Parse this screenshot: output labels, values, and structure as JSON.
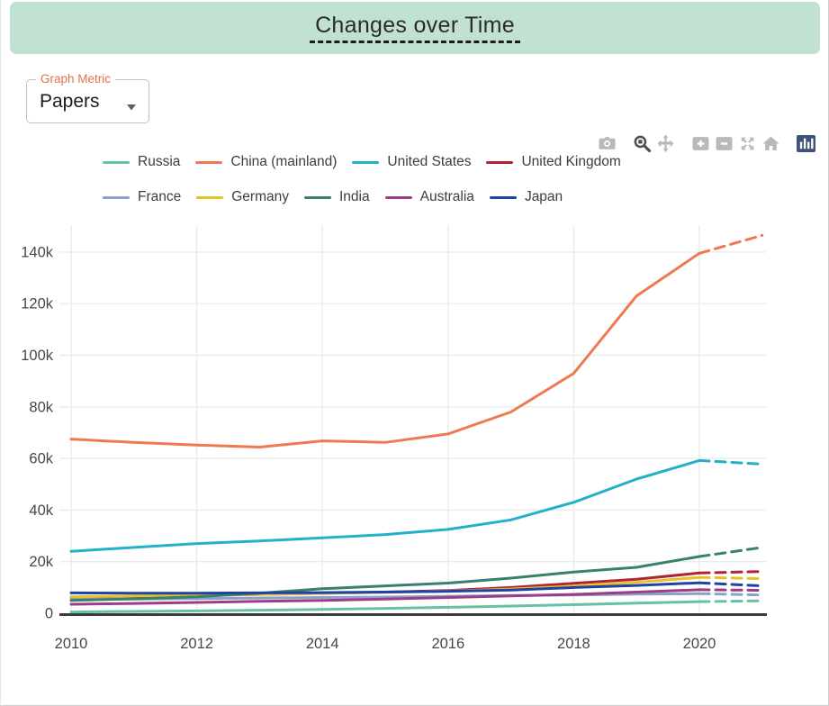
{
  "header": {
    "title": "Changes over Time"
  },
  "controls": {
    "graph_metric": {
      "label": "Graph Metric",
      "value": "Papers"
    }
  },
  "toolbar": {
    "icons": [
      "camera-download",
      "zoom",
      "pan",
      "zoom-in",
      "zoom-out",
      "autoscale",
      "reset-axes-home",
      "plotly-logo"
    ]
  },
  "colors": {
    "header_bg": "#c1e2d2",
    "metric_label_accent": "#e0714f",
    "axis_text": "#474747",
    "gridline": "#ebebeb",
    "zeroline": "#3b3b3b",
    "modebar_icon": "#b9b9b9",
    "modebar_icon_active": "#4d4d4d",
    "plotly_logo_bg": "#3e527a"
  },
  "chart_data": {
    "type": "line",
    "title": "",
    "xlabel": "",
    "ylabel": "",
    "x": [
      2010,
      2011,
      2012,
      2013,
      2014,
      2015,
      2016,
      2017,
      2018,
      2019,
      2020,
      2021
    ],
    "xticks": [
      {
        "v": 2010,
        "label": "2010"
      },
      {
        "v": 2012,
        "label": "2012"
      },
      {
        "v": 2014,
        "label": "2014"
      },
      {
        "v": 2016,
        "label": "2016"
      },
      {
        "v": 2018,
        "label": "2018"
      },
      {
        "v": 2020,
        "label": "2020"
      }
    ],
    "yticks": [
      {
        "v": 0,
        "label": "0"
      },
      {
        "v": 20000,
        "label": "20k"
      },
      {
        "v": 40000,
        "label": "40k"
      },
      {
        "v": 60000,
        "label": "60k"
      },
      {
        "v": 80000,
        "label": "80k"
      },
      {
        "v": 100000,
        "label": "100k"
      },
      {
        "v": 120000,
        "label": "120k"
      },
      {
        "v": 140000,
        "label": "140k"
      }
    ],
    "xlim": [
      2009.8,
      2021.1
    ],
    "ylim": [
      0,
      150000
    ],
    "grid": true,
    "legend_position": "top",
    "legend_rows": [
      4,
      5
    ],
    "dashed_final_segment": true,
    "series": [
      {
        "name": "Russia",
        "color": "#66c2a5",
        "values": [
          500,
          700,
          900,
          1200,
          1500,
          1900,
          2300,
          2800,
          3300,
          3900,
          4500,
          4800
        ]
      },
      {
        "name": "China (mainland)",
        "color": "#ee7a4f",
        "values": [
          67500,
          66200,
          65200,
          64400,
          66800,
          66200,
          69500,
          78000,
          93000,
          123000,
          139500,
          146500
        ]
      },
      {
        "name": "United States",
        "color": "#22b1c7",
        "values": [
          24000,
          25500,
          27000,
          28000,
          29200,
          30500,
          32500,
          36200,
          43000,
          52000,
          59200,
          57800
        ]
      },
      {
        "name": "United Kingdom",
        "color": "#b22433",
        "values": [
          6300,
          6600,
          6900,
          7300,
          7700,
          8200,
          8800,
          10000,
          11600,
          13200,
          15600,
          16200
        ]
      },
      {
        "name": "France",
        "color": "#8da0cb",
        "values": [
          5300,
          5500,
          5700,
          5900,
          6100,
          6300,
          6600,
          6900,
          7100,
          7400,
          7600,
          7100
        ]
      },
      {
        "name": "Germany",
        "color": "#e6c229",
        "values": [
          6400,
          6700,
          7000,
          7300,
          7700,
          8100,
          8600,
          9400,
          10500,
          12000,
          13900,
          13400
        ]
      },
      {
        "name": "India",
        "color": "#38806f",
        "values": [
          5000,
          5600,
          6400,
          7800,
          9500,
          10600,
          11700,
          13600,
          16000,
          17800,
          22000,
          25500
        ]
      },
      {
        "name": "Australia",
        "color": "#9c3d86",
        "values": [
          3500,
          3800,
          4200,
          4600,
          5000,
          5500,
          6100,
          6700,
          7300,
          8200,
          9100,
          8900
        ]
      },
      {
        "name": "Japan",
        "color": "#1e42a5",
        "values": [
          7900,
          7800,
          7800,
          7900,
          8000,
          8200,
          8500,
          9000,
          10000,
          10800,
          11800,
          10600
        ]
      }
    ]
  }
}
